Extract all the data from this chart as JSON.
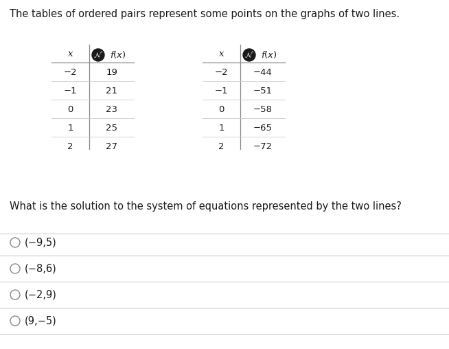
{
  "title_text": "The tables of ordered pairs represent some points on the graphs of two lines.",
  "table1": {
    "x_vals": [
      "−2",
      "−1",
      "0",
      "1",
      "2"
    ],
    "fx_vals": [
      "19",
      "21",
      "23",
      "25",
      "27"
    ]
  },
  "table2": {
    "x_vals": [
      "−2",
      "−1",
      "0",
      "1",
      "2"
    ],
    "fx_vals": [
      "−44",
      "−51",
      "−58",
      "−65",
      "−72"
    ]
  },
  "question_text": "What is the solution to the system of equations represented by the two lines?",
  "options": [
    "(−9,5)",
    "(−8,6)",
    "(−2,9)",
    "(9,−5)"
  ],
  "background_color": "#ffffff",
  "text_color": "#1a1a1a",
  "line_color": "#cccccc",
  "divider_color": "#888888",
  "icon_bg": "#1a1a1a",
  "font_size_title": 10.5,
  "font_size_table": 9.5,
  "font_size_question": 10.5,
  "font_size_options": 10.5
}
